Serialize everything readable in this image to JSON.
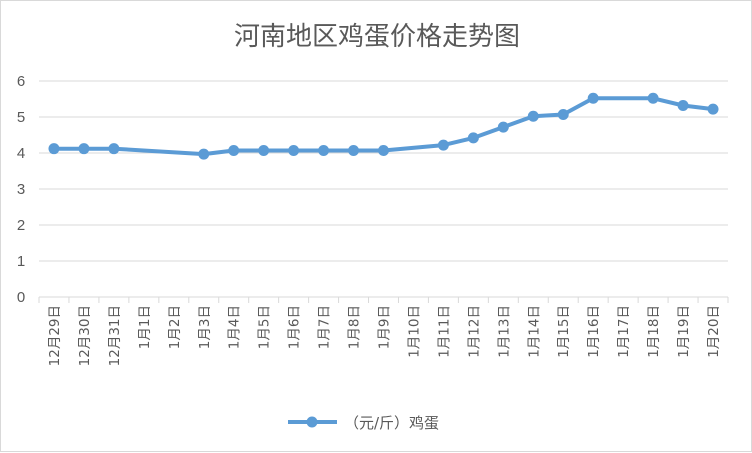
{
  "chart_data": {
    "type": "line",
    "title": "河南地区鸡蛋价格走势图",
    "xlabel": "",
    "ylabel": "",
    "ylim": [
      0,
      6
    ],
    "yticks": [
      0,
      1,
      2,
      3,
      4,
      5,
      6
    ],
    "grid": "horizontal",
    "legend_position": "bottom",
    "categories": [
      "12月29日",
      "12月30日",
      "12月31日",
      "1月1日",
      "1月2日",
      "1月3日",
      "1月4日",
      "1月5日",
      "1月6日",
      "1月7日",
      "1月8日",
      "1月9日",
      "1月10日",
      "1月11日",
      "1月12日",
      "1月13日",
      "1月14日",
      "1月15日",
      "1月16日",
      "1月17日",
      "1月18日",
      "1月19日",
      "1月20日"
    ],
    "series": [
      {
        "name": "（元/斤）鸡蛋",
        "color": "#5b9bd5",
        "values": [
          4.12,
          4.12,
          4.12,
          null,
          null,
          3.97,
          4.07,
          4.07,
          4.07,
          4.07,
          4.07,
          4.07,
          null,
          4.22,
          4.42,
          4.72,
          5.02,
          5.07,
          5.52,
          null,
          5.52,
          5.32,
          5.22
        ]
      }
    ]
  }
}
